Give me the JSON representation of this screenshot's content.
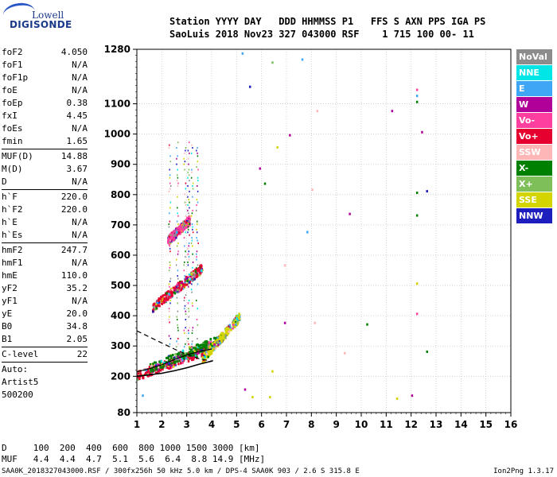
{
  "logo": {
    "line1": "Lowell",
    "line2": "DIGISONDE"
  },
  "header": {
    "labels": "Station YYYY DAY   DDD HHMMSS P1   FFS S AXN PPS IGA PS",
    "values": "SaoLuis 2018 Nov23 327 043000 RSF    1 715 100 00- 11"
  },
  "params": [
    {
      "label": "foF2",
      "value": "4.050"
    },
    {
      "label": "foF1",
      "value": "N/A"
    },
    {
      "label": "foF1p",
      "value": "N/A"
    },
    {
      "label": "foE",
      "value": "N/A"
    },
    {
      "label": "foEp",
      "value": "0.38"
    },
    {
      "label": "fxI",
      "value": "4.45"
    },
    {
      "label": "foEs",
      "value": "N/A"
    },
    {
      "label": "fmin",
      "value": "1.65",
      "sep": true
    },
    {
      "label": "MUF(D)",
      "value": "14.88"
    },
    {
      "label": "M(D)",
      "value": "3.67"
    },
    {
      "label": "D",
      "value": "N/A",
      "sep": true
    },
    {
      "label": "h`F",
      "value": "220.0"
    },
    {
      "label": "h`F2",
      "value": "220.0"
    },
    {
      "label": "h`E",
      "value": "N/A"
    },
    {
      "label": "h`Es",
      "value": "N/A",
      "sep": true
    },
    {
      "label": "hmF2",
      "value": "247.7"
    },
    {
      "label": "hmF1",
      "value": "N/A"
    },
    {
      "label": "hmE",
      "value": "110.0"
    },
    {
      "label": "yF2",
      "value": "35.2"
    },
    {
      "label": "yF1",
      "value": "N/A"
    },
    {
      "label": "yE",
      "value": "20.0"
    },
    {
      "label": "B0",
      "value": "34.8"
    },
    {
      "label": "B1",
      "value": "2.05",
      "sep": true
    },
    {
      "label": "C-level",
      "value": "22",
      "sep": true
    }
  ],
  "autoscaling": [
    "Auto:",
    "Artist5",
    "500200"
  ],
  "legend": [
    {
      "label": "NoVal",
      "color": "#8c8c8c"
    },
    {
      "label": "NNE",
      "color": "#00e5e5"
    },
    {
      "label": "E",
      "color": "#3fa5f5"
    },
    {
      "label": "W",
      "color": "#b00099"
    },
    {
      "label": "Vo-",
      "color": "#ff3fa0"
    },
    {
      "label": "Vo+",
      "color": "#e60030"
    },
    {
      "label": "SSW",
      "color": "#ffb6b6"
    },
    {
      "label": "X-",
      "color": "#008000"
    },
    {
      "label": "X+",
      "color": "#7fbf5a"
    },
    {
      "label": "SSE",
      "color": "#d4d400"
    },
    {
      "label": "NNW",
      "color": "#1e1ebe"
    }
  ],
  "chart_data": {
    "type": "scatter",
    "xlim": [
      1,
      16
    ],
    "ylim": [
      80,
      1280
    ],
    "x_ticks": [
      "1",
      "2",
      "3",
      "4",
      "5",
      "6",
      "7",
      "8",
      "9",
      "10",
      "11",
      "12",
      "13",
      "14",
      "15",
      "16"
    ],
    "y_ticks": [
      "80",
      "200",
      "300",
      "400",
      "500",
      "600",
      "700",
      "800",
      "900",
      "1000",
      "1100",
      "1280"
    ],
    "grid": true,
    "profile_curve": {
      "x": [
        1.0,
        1.5,
        2.0,
        2.5,
        3.0,
        3.5,
        4.0,
        4.05
      ],
      "y": [
        200,
        205,
        210,
        218,
        228,
        240,
        250,
        252
      ]
    },
    "model_curve_upper": {
      "x": [
        1.0,
        1.5,
        2.0,
        2.5,
        3.0,
        3.5,
        4.0
      ],
      "y": [
        350,
        330,
        310,
        290,
        272,
        258,
        250
      ]
    },
    "model_curve_lower": {
      "x": [
        1.0,
        1.5,
        2.0,
        2.5,
        3.0,
        3.5,
        4.0
      ],
      "y": [
        215,
        225,
        238,
        255,
        270,
        282,
        290
      ]
    },
    "traces": [
      {
        "name": "F2 O-trace",
        "x_range": [
          1.0,
          4.05
        ],
        "y_range": [
          205,
          300
        ],
        "color": "#e60030"
      },
      {
        "name": "F2 X-trace",
        "x_range": [
          1.5,
          4.45
        ],
        "y_range": [
          230,
          330
        ],
        "color": "#008000"
      },
      {
        "name": "2F echo",
        "x_range": [
          1.6,
          3.6
        ],
        "y_range": [
          430,
          560
        ],
        "color": "#e60030"
      },
      {
        "name": "3F echo",
        "x_range": [
          2.2,
          3.1
        ],
        "y_range": [
          650,
          720
        ],
        "color": "#ff3fa0"
      },
      {
        "name": "Spread F",
        "x_range": [
          3.6,
          5.1
        ],
        "y_range": [
          260,
          400
        ],
        "color": "#d4d400"
      }
    ],
    "scatter_points": [
      {
        "x": 5.2,
        "y": 1270,
        "color": "#3fa5f5"
      },
      {
        "x": 5.5,
        "y": 1160,
        "color": "#1e1ebe"
      },
      {
        "x": 6.4,
        "y": 1240,
        "color": "#7fbf5a"
      },
      {
        "x": 7.6,
        "y": 1250,
        "color": "#3fa5f5"
      },
      {
        "x": 8.2,
        "y": 1080,
        "color": "#ffb6b6"
      },
      {
        "x": 11.2,
        "y": 1080,
        "color": "#b00099"
      },
      {
        "x": 12.2,
        "y": 1150,
        "color": "#ff3fa0"
      },
      {
        "x": 12.2,
        "y": 1130,
        "color": "#3fa5f5"
      },
      {
        "x": 12.2,
        "y": 1110,
        "color": "#008000"
      },
      {
        "x": 12.4,
        "y": 1010,
        "color": "#b00099"
      },
      {
        "x": 7.1,
        "y": 1000,
        "color": "#b00099"
      },
      {
        "x": 5.9,
        "y": 890,
        "color": "#b00099"
      },
      {
        "x": 6.1,
        "y": 840,
        "color": "#008000"
      },
      {
        "x": 6.6,
        "y": 960,
        "color": "#d4d400"
      },
      {
        "x": 8.0,
        "y": 820,
        "color": "#ffb6b6"
      },
      {
        "x": 9.5,
        "y": 740,
        "color": "#b00099"
      },
      {
        "x": 12.2,
        "y": 810,
        "color": "#008000"
      },
      {
        "x": 12.6,
        "y": 815,
        "color": "#1e1ebe"
      },
      {
        "x": 12.2,
        "y": 735,
        "color": "#008000"
      },
      {
        "x": 7.8,
        "y": 680,
        "color": "#3fa5f5"
      },
      {
        "x": 6.9,
        "y": 570,
        "color": "#ffb6b6"
      },
      {
        "x": 12.2,
        "y": 510,
        "color": "#d4d400"
      },
      {
        "x": 6.9,
        "y": 380,
        "color": "#b00099"
      },
      {
        "x": 8.1,
        "y": 380,
        "color": "#ffb6b6"
      },
      {
        "x": 10.2,
        "y": 375,
        "color": "#008000"
      },
      {
        "x": 12.2,
        "y": 410,
        "color": "#ff3fa0"
      },
      {
        "x": 12.6,
        "y": 285,
        "color": "#008000"
      },
      {
        "x": 9.3,
        "y": 280,
        "color": "#ffb6b6"
      },
      {
        "x": 6.4,
        "y": 220,
        "color": "#d4d400"
      },
      {
        "x": 5.3,
        "y": 160,
        "color": "#b00099"
      },
      {
        "x": 5.6,
        "y": 135,
        "color": "#d4d400"
      },
      {
        "x": 6.3,
        "y": 135,
        "color": "#d4d400"
      },
      {
        "x": 12.0,
        "y": 140,
        "color": "#b00099"
      },
      {
        "x": 11.4,
        "y": 130,
        "color": "#d4d400"
      },
      {
        "x": 1.2,
        "y": 140,
        "color": "#3fa5f5"
      }
    ]
  },
  "footer": {
    "d_line": "D     100  200  400  600  800 1000 1500 3000 [km]",
    "muf_line": "MUF   4.4  4.4  4.7  5.1  5.6  6.4  8.8 14.9 [MHz]",
    "info_line": "SAA0K_2018327043000.RSF / 300fx256h 50 kHz 5.0 km / DPS-4 SAA0K 903 / 2.6 S 315.8 E",
    "version": "Ion2Png 1.3.17"
  }
}
